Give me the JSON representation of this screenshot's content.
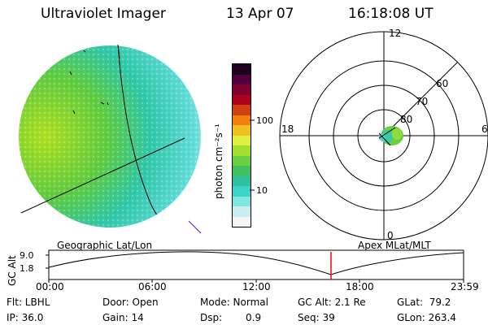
{
  "header": {
    "instrument": "Ultraviolet Imager",
    "date": "13 Apr 07",
    "time": "16:18:08 UT"
  },
  "colorbar": {
    "unit": "photon cm⁻²s⁻¹",
    "ticks": [
      "100",
      "10"
    ],
    "colors": [
      "#f5f5f5",
      "#c8eef0",
      "#7fe6e0",
      "#3cd4c8",
      "#2ec0a0",
      "#40c060",
      "#6ad040",
      "#a0e030",
      "#e0f040",
      "#f0c020",
      "#f08010",
      "#d04010",
      "#b00020",
      "#800030",
      "#500040",
      "#200020"
    ]
  },
  "polar": {
    "clock_labels": [
      "12",
      "18",
      "6",
      "0"
    ],
    "lat_labels": [
      "60",
      "70",
      "80"
    ]
  },
  "altitude_panel": {
    "ylabel": "GC Alt",
    "yticks": [
      "9.0",
      "1.8"
    ],
    "left_title": "Geographic Lat/Lon",
    "right_title": "Apex MLat/MLT",
    "xticks": [
      "00:00",
      "06:00",
      "12:00",
      "18:00",
      "23:59"
    ],
    "marker_color": "#ff0000"
  },
  "info": {
    "flt": "Flt: LBHL",
    "ip": "IP: 36.0",
    "door": "Door: Open",
    "gain": "Gain: 14",
    "mode": "Mode: Normal",
    "dsp_label": "Dsp:",
    "dsp_value": "0.9",
    "gc_alt": "GC Alt: 2.1 Re",
    "seq": "Seq: 39",
    "glat": "GLat:  79.2",
    "glon": "GLon: 263.4"
  }
}
